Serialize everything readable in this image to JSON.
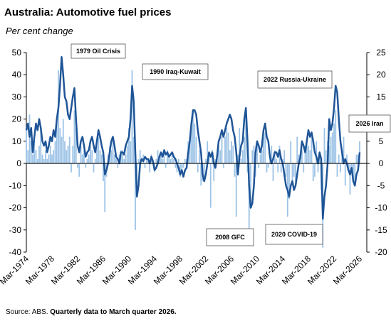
{
  "chart_data": {
    "type": "bar-line",
    "title": "Australia: Automotive fuel prices",
    "subtitle": "Per cent change",
    "source": "Source: ABS.",
    "note": "Quarterly data to March quarter 2026.",
    "annotations": [
      "1979 Oil Crisis",
      "1990 Iraq-Kuwait",
      "2022 Russia-Ukraine",
      "2026 Iran",
      "2008 GFC",
      "2020 COVID-19"
    ],
    "categories": [
      "Mar-1974",
      null,
      null,
      null,
      null,
      null,
      null,
      null,
      null,
      null,
      null,
      null,
      null,
      null,
      null,
      null,
      "Mar-1978",
      null,
      null,
      null,
      null,
      null,
      null,
      null,
      null,
      null,
      null,
      null,
      null,
      null,
      null,
      null,
      "Mar-1982",
      null,
      null,
      null,
      null,
      null,
      null,
      null,
      null,
      null,
      null,
      null,
      null,
      null,
      null,
      null,
      "Mar-1986",
      null,
      null,
      null,
      null,
      null,
      null,
      null,
      null,
      null,
      null,
      null,
      null,
      null,
      null,
      null,
      "Mar-1990",
      null,
      null,
      null,
      null,
      null,
      null,
      null,
      null,
      null,
      null,
      null,
      null,
      null,
      null,
      null,
      "Mar-1994",
      null,
      null,
      null,
      null,
      null,
      null,
      null,
      null,
      null,
      null,
      null,
      null,
      null,
      null,
      null,
      "Mar-1998",
      null,
      null,
      null,
      null,
      null,
      null,
      null,
      null,
      null,
      null,
      null,
      null,
      null,
      null,
      null,
      "Mar-2002",
      null,
      null,
      null,
      null,
      null,
      null,
      null,
      null,
      null,
      null,
      null,
      null,
      null,
      null,
      null,
      "Mar-2006",
      null,
      null,
      null,
      null,
      null,
      null,
      null,
      null,
      null,
      null,
      null,
      null,
      null,
      null,
      null,
      "Mar-2010",
      null,
      null,
      null,
      null,
      null,
      null,
      null,
      null,
      null,
      null,
      null,
      null,
      null,
      null,
      null,
      "Mar-2014",
      null,
      null,
      null,
      null,
      null,
      null,
      null,
      null,
      null,
      null,
      null,
      null,
      null,
      null,
      null,
      "Mar-2018",
      null,
      null,
      null,
      null,
      null,
      null,
      null,
      null,
      null,
      null,
      null,
      null,
      null,
      null,
      null,
      "Mar-2022",
      null,
      null,
      null,
      null,
      null,
      null,
      null,
      null,
      null,
      null,
      null,
      null,
      null,
      null,
      null,
      "Mar-2026"
    ],
    "series": [
      {
        "kind": "bar",
        "axis": "y2",
        "color": "#9dc3e6",
        "values": [
          8,
          3,
          11,
          5,
          2,
          5,
          3,
          1,
          4,
          8,
          2,
          1,
          3,
          1,
          2,
          4,
          2,
          3,
          5,
          10,
          21,
          8,
          6,
          10,
          5,
          3,
          4,
          6,
          -2,
          4,
          12,
          8,
          -1,
          -3,
          4,
          2,
          3,
          -1,
          1,
          2,
          4,
          3,
          -2,
          1,
          5,
          6,
          3,
          2,
          -4,
          -11,
          -3,
          2,
          4,
          3,
          5,
          2,
          1,
          -1,
          2,
          3,
          3,
          1,
          2,
          4,
          8,
          5,
          21,
          6,
          -15,
          -6,
          1,
          3,
          0,
          2,
          -1,
          1,
          1,
          -2,
          2,
          0,
          -2,
          1,
          3,
          1,
          2,
          1,
          3,
          -1,
          3,
          2,
          1,
          2,
          1,
          -1,
          -2,
          1,
          -3,
          -2,
          -1,
          1,
          1,
          5,
          6,
          8,
          12,
          9,
          6,
          -2,
          3,
          -5,
          -4,
          -3,
          1,
          5,
          2,
          -10,
          3,
          -4,
          1,
          2,
          4,
          3,
          6,
          -1,
          6,
          8,
          7,
          3,
          5,
          4,
          -3,
          -12,
          2,
          8,
          1,
          3,
          6,
          10,
          -2,
          -18,
          -9,
          3,
          4,
          -3,
          5,
          -1,
          2,
          3,
          6,
          7,
          -2,
          -1,
          2,
          4,
          -4,
          3,
          1,
          -2,
          4,
          -2,
          1,
          3,
          -3,
          -12,
          -8,
          5,
          -4,
          -3,
          -4,
          6,
          2,
          2,
          3,
          -2,
          4,
          5,
          4,
          3,
          6,
          -4,
          -3,
          5,
          -2,
          2,
          -6,
          -19,
          8,
          3,
          5,
          4,
          6,
          7,
          9,
          12,
          -3,
          2,
          -2,
          3,
          6,
          -5,
          2,
          -1,
          -7,
          -2,
          -4,
          -5,
          2,
          2,
          5
        ]
      },
      {
        "kind": "line",
        "axis": "y",
        "color": "#1f5597",
        "values": [
          15,
          18,
          12,
          16,
          5,
          12,
          18,
          15,
          20,
          16,
          10,
          8,
          10,
          5,
          8,
          12,
          10,
          15,
          12,
          20,
          25,
          35,
          48,
          40,
          30,
          28,
          22,
          20,
          25,
          30,
          34,
          20,
          8,
          5,
          10,
          12,
          8,
          3,
          5,
          6,
          10,
          12,
          8,
          5,
          10,
          15,
          12,
          8,
          5,
          -5,
          -3,
          0,
          5,
          10,
          12,
          8,
          3,
          2,
          0,
          5,
          5,
          4,
          8,
          10,
          12,
          20,
          35,
          28,
          5,
          -15,
          -10,
          0,
          2,
          1,
          3,
          2,
          2,
          0,
          3,
          1,
          -3,
          -2,
          0,
          3,
          5,
          3,
          6,
          4,
          5,
          3,
          4,
          5,
          3,
          2,
          0,
          -2,
          -5,
          -3,
          -6,
          -3,
          -2,
          5,
          10,
          18,
          24,
          24,
          22,
          15,
          10,
          5,
          -5,
          -8,
          -5,
          0,
          5,
          3,
          5,
          0,
          -2,
          3,
          10,
          12,
          15,
          12,
          15,
          18,
          20,
          22,
          20,
          15,
          12,
          5,
          -5,
          3,
          8,
          10,
          20,
          25,
          10,
          -10,
          -20,
          -18,
          -10,
          5,
          10,
          8,
          5,
          8,
          15,
          18,
          12,
          10,
          3,
          0,
          2,
          5,
          5,
          3,
          6,
          2,
          0,
          -5,
          -10,
          -12,
          -15,
          -10,
          -8,
          -12,
          -10,
          -5,
          0,
          3,
          10,
          8,
          5,
          10,
          15,
          12,
          14,
          10,
          5,
          3,
          0,
          5,
          2,
          -25,
          -15,
          -10,
          0,
          20,
          15,
          18,
          25,
          35,
          32,
          20,
          10,
          5,
          0,
          2,
          0,
          -3,
          -5,
          -2,
          -8,
          -10,
          -5,
          -3,
          5
        ]
      }
    ],
    "ylim": [
      -40,
      50
    ],
    "yticks": [
      -40,
      -30,
      -20,
      -10,
      0,
      10,
      20,
      30,
      40,
      50
    ],
    "y2lim": [
      -20,
      25
    ],
    "y2ticks": [
      -20,
      -15,
      -10,
      -5,
      0,
      5,
      10,
      15,
      20,
      25
    ]
  }
}
